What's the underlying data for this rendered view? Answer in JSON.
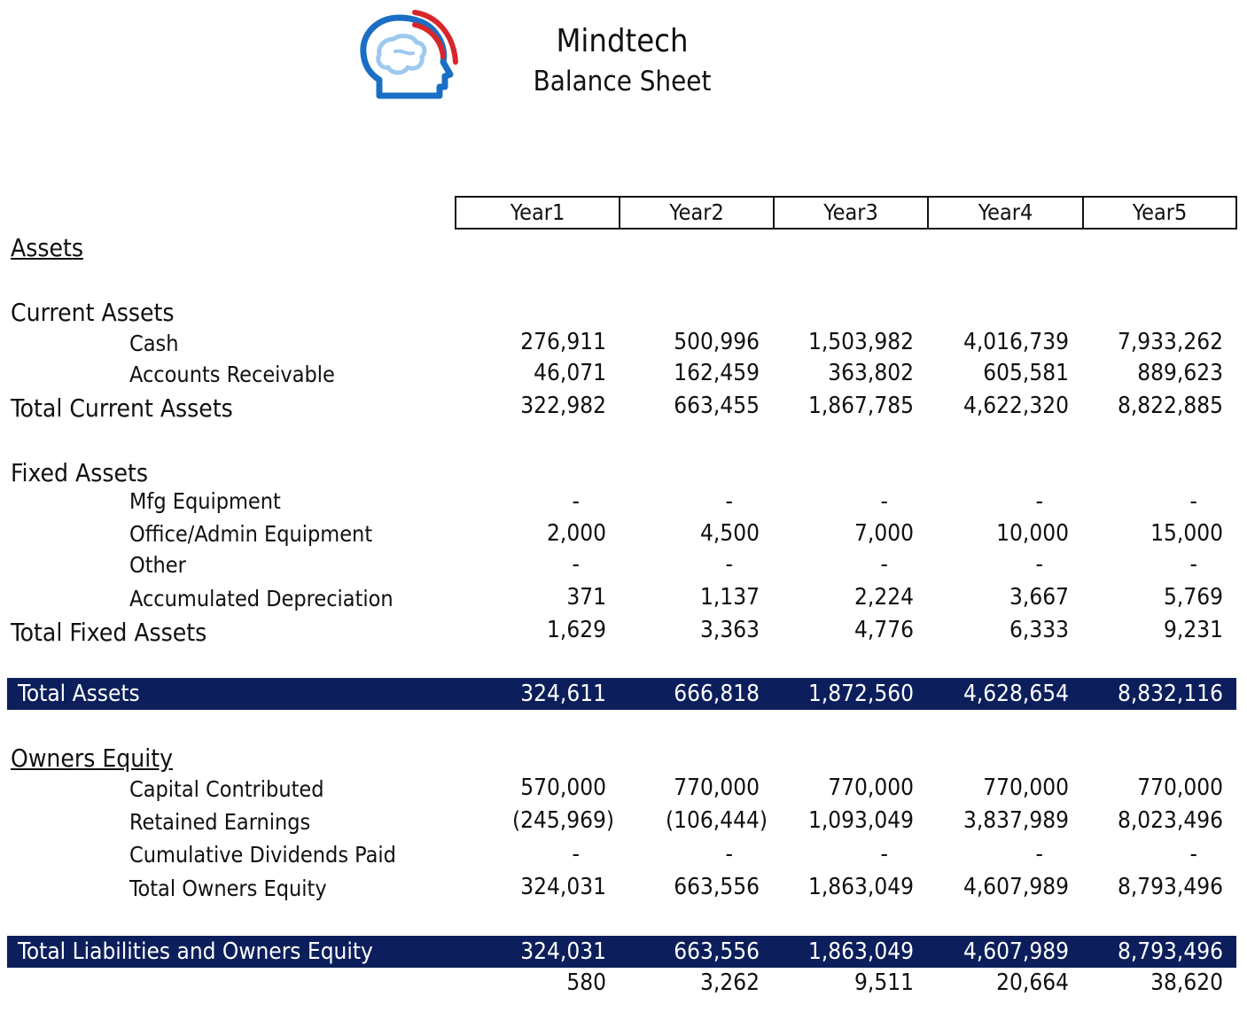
{
  "header": {
    "company": "Mindtech",
    "subtitle": "Balance Sheet"
  },
  "colors": {
    "band": "#0c1f5c",
    "logo_blue": "#1a6fc4",
    "logo_light": "#9ec9ee",
    "logo_red": "#d8262a"
  },
  "logo": {
    "icon": "brain-head-signal-icon"
  },
  "years": [
    "Year1",
    "Year2",
    "Year3",
    "Year4",
    "Year5"
  ],
  "assets": {
    "title": "Assets",
    "current": {
      "title": "Current Assets",
      "cash": {
        "label": "Cash",
        "values": [
          "276,911",
          "500,996",
          "1,503,982",
          "4,016,739",
          "7,933,262"
        ]
      },
      "ar": {
        "label": "Accounts Receivable",
        "values": [
          "46,071",
          "162,459",
          "363,802",
          "605,581",
          "889,623"
        ]
      },
      "total": {
        "label": "Total Current Assets",
        "values": [
          "322,982",
          "663,455",
          "1,867,785",
          "4,622,320",
          "8,822,885"
        ]
      }
    },
    "fixed": {
      "title": "Fixed Assets",
      "mfg": {
        "label": "Mfg Equipment",
        "values": [
          "-",
          "-",
          "-",
          "-",
          "-"
        ]
      },
      "office": {
        "label": "Office/Admin Equipment",
        "values": [
          "2,000",
          "4,500",
          "7,000",
          "10,000",
          "15,000"
        ]
      },
      "other": {
        "label": "Other",
        "values": [
          "-",
          "-",
          "-",
          "-",
          "-"
        ]
      },
      "depr": {
        "label": "Accumulated Depreciation",
        "values": [
          "371",
          "1,137",
          "2,224",
          "3,667",
          "5,769"
        ]
      },
      "total": {
        "label": "Total Fixed Assets",
        "values": [
          "1,629",
          "3,363",
          "4,776",
          "6,333",
          "9,231"
        ]
      }
    },
    "total": {
      "label": "Total Assets",
      "values": [
        "324,611",
        "666,818",
        "1,872,560",
        "4,628,654",
        "8,832,116"
      ]
    }
  },
  "equity": {
    "title": "Owners Equity ",
    "capital": {
      "label": "Capital Contributed",
      "values": [
        "570,000",
        "770,000",
        "770,000",
        "770,000",
        "770,000"
      ]
    },
    "retained": {
      "label": "Retained Earnings",
      "values": [
        "(245,969)",
        "(106,444)",
        "1,093,049",
        "3,837,989",
        "8,023,496"
      ]
    },
    "dividends": {
      "label": "Cumulative Dividends Paid",
      "values": [
        "-",
        "-",
        "-",
        "-",
        "-"
      ]
    },
    "total": {
      "label": "Total Owners Equity",
      "values": [
        "324,031",
        "663,556",
        "1,863,049",
        "4,607,989",
        "8,793,496"
      ]
    }
  },
  "total_liab_equity": {
    "label": "Total Liabilities and Owners Equity",
    "values": [
      "324,031",
      "663,556",
      "1,863,049",
      "4,607,989",
      "8,793,496"
    ]
  },
  "difference": {
    "values": [
      "580",
      "3,262",
      "9,511",
      "20,664",
      "38,620"
    ]
  }
}
